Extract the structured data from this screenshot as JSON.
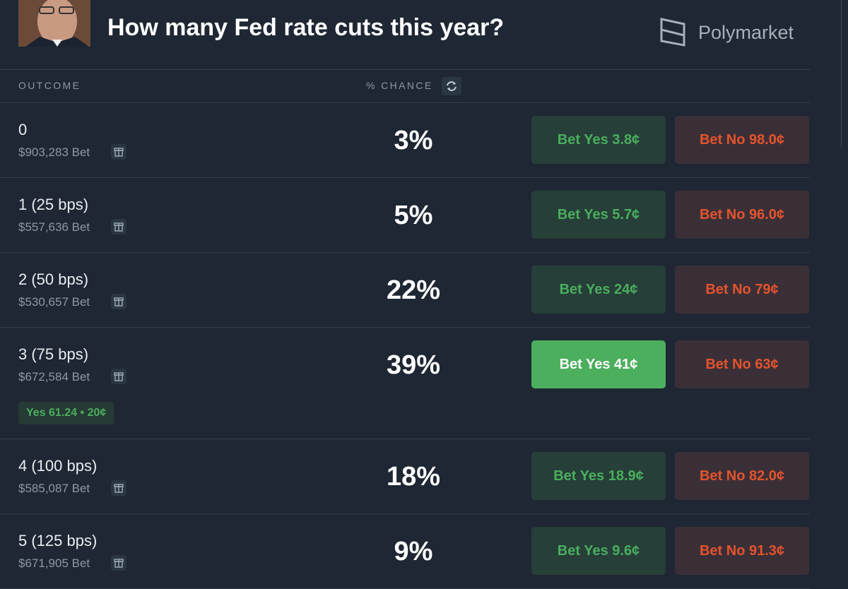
{
  "header": {
    "title": "How many Fed rate cuts this year?",
    "brand": "Polymarket"
  },
  "table": {
    "columns": [
      "OUTCOME",
      "% CHANCE"
    ],
    "rows": [
      {
        "outcome": "0",
        "volume": "$903,283 Bet",
        "chance": "3%",
        "yes": "Bet Yes 3.8¢",
        "no": "Bet No 98.0¢"
      },
      {
        "outcome": "1 (25 bps)",
        "volume": "$557,636 Bet",
        "chance": "5%",
        "yes": "Bet Yes 5.7¢",
        "no": "Bet No 96.0¢"
      },
      {
        "outcome": "2 (50 bps)",
        "volume": "$530,657 Bet",
        "chance": "22%",
        "yes": "Bet Yes 24¢",
        "no": "Bet No 79¢"
      },
      {
        "outcome": "3 (75 bps)",
        "volume": "$672,584 Bet",
        "chance": "39%",
        "yes": "Bet Yes 41¢",
        "no": "Bet No 63¢",
        "selected": true,
        "position": "Yes 61.24 • 20¢"
      },
      {
        "outcome": "4 (100 bps)",
        "volume": "$585,087 Bet",
        "chance": "18%",
        "yes": "Bet Yes 18.9¢",
        "no": "Bet No 82.0¢"
      },
      {
        "outcome": "5 (125 bps)",
        "volume": "$671,905 Bet",
        "chance": "9%",
        "yes": "Bet Yes 9.6¢",
        "no": "Bet No 91.3¢"
      }
    ]
  }
}
